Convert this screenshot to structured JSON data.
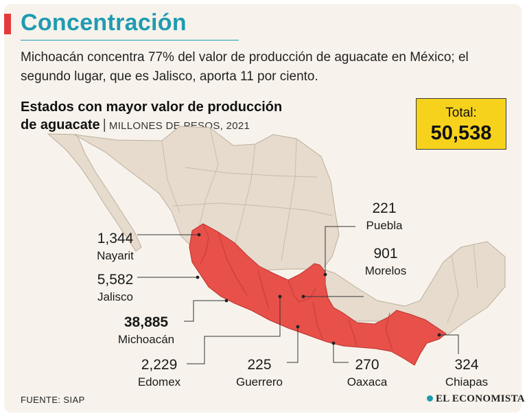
{
  "header": {
    "title": "Concentración",
    "dek": "Michoacán concentra 77% del valor de producción de aguacate en México; el segundo lugar, que es Jalisco, aporta 11 por ciento."
  },
  "chart_data": {
    "type": "choropleth-map",
    "title_line1": "Estados con mayor valor de producción",
    "title_line2": "de aguacate",
    "units": "MILLONES DE PESOS, 2021",
    "total_label": "Total:",
    "total": "50,538",
    "total_value": 50538,
    "states": [
      {
        "name": "Nayarit",
        "label": "1,344",
        "value": 1344,
        "highlight": true
      },
      {
        "name": "Jalisco",
        "label": "5,582",
        "value": 5582,
        "highlight": true
      },
      {
        "name": "Michoacán",
        "label": "38,885",
        "value": 38885,
        "highlight": true,
        "emphasis": true
      },
      {
        "name": "Edomex",
        "label": "2,229",
        "value": 2229,
        "highlight": true
      },
      {
        "name": "Guerrero",
        "label": "225",
        "value": 225,
        "highlight": true
      },
      {
        "name": "Oaxaca",
        "label": "270",
        "value": 270,
        "highlight": true
      },
      {
        "name": "Chiapas",
        "label": "324",
        "value": 324,
        "highlight": true
      },
      {
        "name": "Puebla",
        "label": "221",
        "value": 221,
        "highlight": true
      },
      {
        "name": "Morelos",
        "label": "901",
        "value": 901,
        "highlight": true
      }
    ]
  },
  "colors": {
    "accent": "#1f9bb1",
    "highlight": "#e8504a",
    "base": "#e6dbcd",
    "total_box": "#f6d21c"
  },
  "footer": {
    "source": "FUENTE: SIAP",
    "brand": "EL ECONOMISTA"
  }
}
